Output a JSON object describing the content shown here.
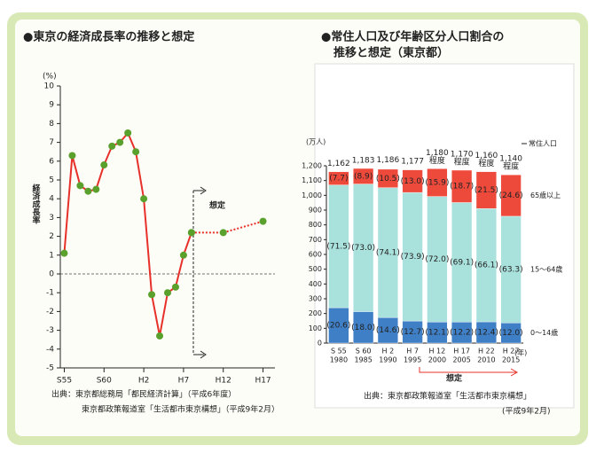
{
  "chart_data": [
    {
      "type": "line",
      "title": "●東京の経済成長率の推移と想定",
      "y_unit": "(%)",
      "ylabel": "経済成長率",
      "annotation": "想定",
      "source": [
        "出典：東京都総務局「都民経済計算」（平成6年度）",
        "東京都政策報道室「生活都市東京構想」（平成9年2月）"
      ],
      "xlim": [
        1979.5,
        2006.5
      ],
      "xticks": [
        {
          "value": 1980,
          "label": "S55"
        },
        {
          "value": 1985,
          "label": "S60"
        },
        {
          "value": 1990,
          "label": "H2"
        },
        {
          "value": 1995,
          "label": "H7"
        },
        {
          "value": 2000,
          "label": "H12"
        },
        {
          "value": 2005,
          "label": "H17"
        }
      ],
      "ylim": [
        -5,
        10
      ],
      "yticks": [
        -5,
        -4,
        -3,
        -2,
        -1,
        0,
        1,
        2,
        3,
        4,
        5,
        6,
        7,
        8,
        9,
        10
      ],
      "series": [
        {
          "color": "#e8302a",
          "style": "solid",
          "marker_color": "#5aa02c",
          "x": [
            1980,
            1981,
            1982,
            1983,
            1984,
            1985,
            1986,
            1987,
            1988,
            1989,
            1990,
            1991,
            1992,
            1993,
            1994,
            1995,
            1996
          ],
          "values": [
            1.1,
            6.3,
            4.7,
            4.4,
            4.5,
            5.8,
            6.8,
            7.0,
            7.5,
            6.5,
            4.0,
            -1.1,
            -3.3,
            -1.0,
            -0.7,
            1.0,
            2.2
          ]
        },
        {
          "color": "#e8302a",
          "style": "dotted",
          "marker_color": "#5aa02c",
          "x": [
            1996,
            2000,
            2005
          ],
          "values": [
            2.2,
            2.2,
            2.8
          ]
        }
      ]
    },
    {
      "type": "stacked_bar",
      "title": [
        "●常住人口及び年齢区分人口割合の",
        "推移と想定（東京都）"
      ],
      "y_unit": "(万人)",
      "x_unit": "(年)",
      "annotation": "想定",
      "source": [
        "出典：東京都政策報道室「生活都市東京構想」",
        "(平成9年2月)"
      ],
      "categories": [
        "S 55",
        "S 60",
        "H 2",
        "H 7",
        "H 12",
        "H 17",
        "H 22",
        "H 27"
      ],
      "years": [
        "1980",
        "1985",
        "1990",
        "1995",
        "2000",
        "2005",
        "2010",
        "2015"
      ],
      "ylim": [
        0,
        1200
      ],
      "yticks": [
        0,
        100,
        200,
        300,
        400,
        500,
        600,
        700,
        800,
        900,
        {
          "value": 1000,
          "label": "1,000"
        },
        {
          "value": 1100,
          "label": "1,100"
        },
        {
          "value": 1200,
          "label": "1,200"
        }
      ],
      "totals": {
        "name": "常住人口",
        "values": [
          1162,
          1183,
          1186,
          1177,
          1180,
          1170,
          1160,
          1140
        ],
        "value_labels": [
          "1,162",
          "1,183",
          "1,186",
          "1,177",
          "1,180",
          "1,170",
          "1,160",
          "1,140"
        ],
        "value_notes": [
          null,
          null,
          null,
          null,
          "程度",
          "程度",
          "程度",
          "程度"
        ]
      },
      "series": [
        {
          "name": "0～14歳",
          "color": "#3f7fc6",
          "values": [
            20.6,
            18.0,
            14.6,
            12.7,
            12.1,
            12.2,
            12.4,
            12.0
          ],
          "value_labels": [
            "(20.6)",
            "(18.0)",
            "(14.6)",
            "(12.7)",
            "(12.1)",
            "(12.2)",
            "(12.4)",
            "(12.0)"
          ]
        },
        {
          "name": "15～64歳",
          "color": "#a9e1dc",
          "values": [
            71.5,
            73.0,
            74.1,
            73.9,
            72.0,
            69.1,
            66.1,
            63.3
          ],
          "value_labels": [
            "(71.5)",
            "(73.0)",
            "(74.1)",
            "(73.9)",
            "(72.0)",
            "(69.1)",
            "(66.1)",
            "(63.3)"
          ]
        },
        {
          "name": "65歳以上",
          "color": "#ee4a3c",
          "values": [
            7.7,
            8.9,
            10.5,
            13.0,
            15.9,
            18.7,
            21.5,
            24.6
          ],
          "value_labels": [
            "(7.7)",
            "(8.9)",
            "(10.5)",
            "(13.0)",
            "(15.9)",
            "(18.7)",
            "(21.5)",
            "(24.6)"
          ]
        }
      ]
    }
  ]
}
